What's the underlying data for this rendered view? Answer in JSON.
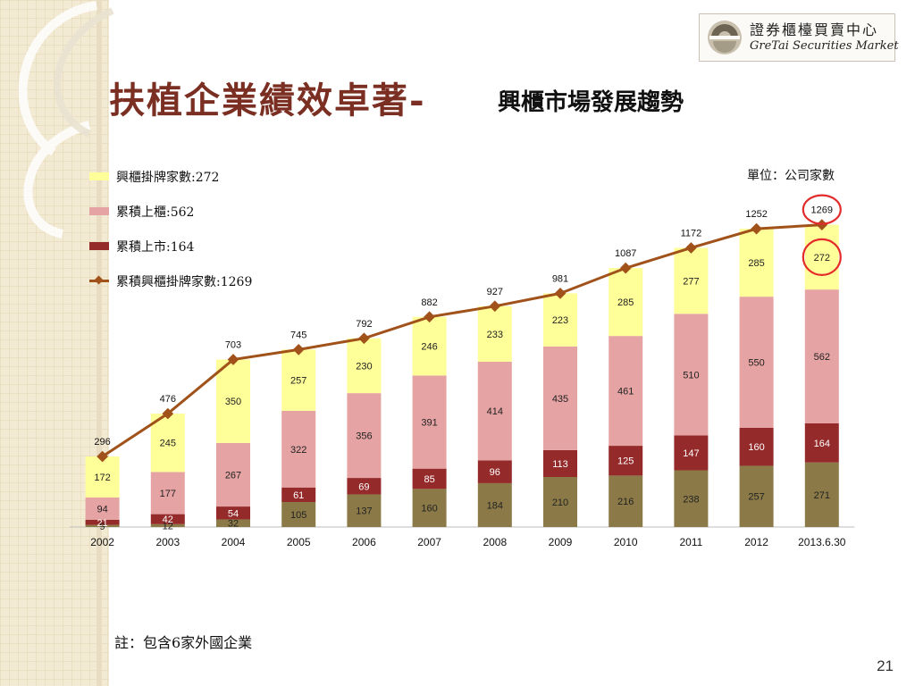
{
  "slide": {
    "title_main": "扶植企業績效卓著-",
    "title_sub": "興櫃市場發展趨勢",
    "footnote": "註：包含6家外國企業",
    "page_number": "21"
  },
  "logo": {
    "zh_text": "證券櫃檯買賣中心",
    "en_text": "GreTai Securities Market"
  },
  "colors": {
    "emerging": "#ffff99",
    "otc": "#e6a3a3",
    "listed": "#952a2a",
    "base": "#8b7a47",
    "line": "#a0521a",
    "highlight": "#e32b2b"
  },
  "chart_data": {
    "type": "bar",
    "stacked": true,
    "unit_label": "單位：公司家數",
    "categories": [
      "2002",
      "2003",
      "2004",
      "2005",
      "2006",
      "2007",
      "2008",
      "2009",
      "2010",
      "2011",
      "2012",
      "2013.6.30"
    ],
    "series": [
      {
        "values": [
          9,
          12,
          32,
          105,
          137,
          160,
          184,
          210,
          216,
          238,
          257,
          271
        ]
      },
      {
        "name": "累積上市:164",
        "values": [
          21,
          42,
          54,
          61,
          69,
          85,
          96,
          113,
          125,
          147,
          160,
          164
        ]
      },
      {
        "name": "累積上櫃:562",
        "values": [
          94,
          177,
          267,
          322,
          356,
          391,
          414,
          435,
          461,
          510,
          550,
          562
        ]
      },
      {
        "name": "興櫃掛牌家數:272",
        "values": [
          172,
          245,
          350,
          257,
          230,
          246,
          233,
          223,
          285,
          277,
          285,
          272
        ]
      }
    ],
    "line_series": {
      "name": "累積興櫃掛牌家數:1269",
      "values": [
        296,
        476,
        703,
        745,
        792,
        882,
        927,
        981,
        1087,
        1172,
        1252,
        1269
      ]
    },
    "highlighted_labels": [
      "1269",
      "272"
    ],
    "ylim": [
      0,
      1350
    ]
  }
}
